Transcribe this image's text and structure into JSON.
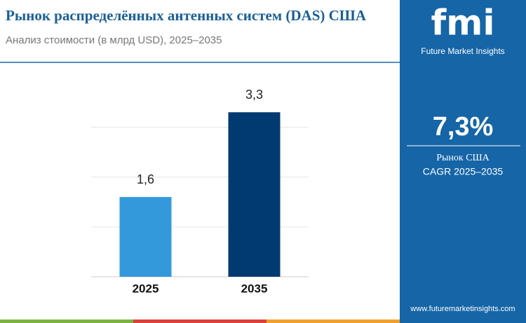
{
  "chart_data": {
    "type": "bar",
    "title": "Рынок распределённых антенных систем (DAS) США",
    "subtitle": "Анализ стоимости (в млрд USD), 2025–2035",
    "categories": [
      "2025",
      "2035"
    ],
    "values": [
      1.6,
      3.3
    ],
    "value_labels": [
      "1,6",
      "3,3"
    ],
    "colors": [
      "#3399db",
      "#003a70"
    ],
    "ylim": [
      0,
      3.5
    ],
    "yticks": [
      0,
      1,
      2,
      3
    ],
    "grid": true
  },
  "sidebar": {
    "logo": "fmi",
    "brand": "Future Market Insights",
    "cagr": "7,3%",
    "cagr_label": [
      "Рынок США",
      "CAGR 2025–2035"
    ],
    "url": "www.futuremarketinsights.com"
  }
}
